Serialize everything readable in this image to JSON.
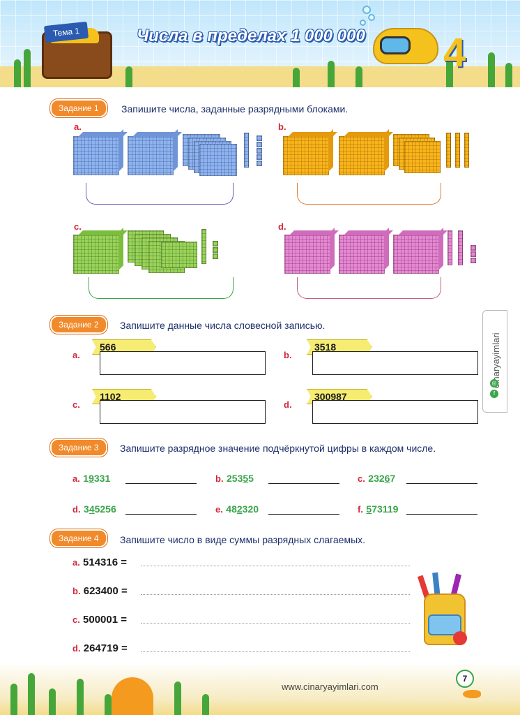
{
  "header": {
    "theme_tag": "Тема 1",
    "title": "Числа в пределах 1 000 000",
    "unit_number": "4"
  },
  "task1": {
    "badge": "Задание 1",
    "instruction": "Запишите числа, заданные разрядными блоками.",
    "parts": [
      {
        "letter": "a.",
        "color": "#8fb3ec",
        "cubes": 2,
        "flats": 4,
        "rods": 1,
        "units": 5
      },
      {
        "letter": "b.",
        "color": "#f7b51b",
        "cubes": 2,
        "flats": 3,
        "rods": 3,
        "units": 0
      },
      {
        "letter": "c.",
        "color": "#9bd25a",
        "cubes": 1,
        "flats": 4,
        "rods": 1,
        "units": 3
      },
      {
        "letter": "d.",
        "color": "#e38ad0",
        "cubes": 3,
        "flats": 0,
        "rods": 2,
        "units": 3
      }
    ]
  },
  "task2": {
    "badge": "Задание 2",
    "instruction": "Запишите данные числа словесной записью.",
    "items": [
      {
        "letter": "a.",
        "number": "566"
      },
      {
        "letter": "b.",
        "number": "3518"
      },
      {
        "letter": "c.",
        "number": "1102"
      },
      {
        "letter": "d.",
        "number": "300987"
      }
    ]
  },
  "task3": {
    "badge": "Задание 3",
    "instruction": "Запишите разрядное значение подчёркнутой цифры в каждом числе.",
    "items": [
      {
        "letter": "a.",
        "pre": "1",
        "digit": "9",
        "post": "331"
      },
      {
        "letter": "b.",
        "pre": "253",
        "digit": "5",
        "post": "5"
      },
      {
        "letter": "c.",
        "pre": "232",
        "digit": "6",
        "post": "7"
      },
      {
        "letter": "d.",
        "pre": "3",
        "digit": "4",
        "post": "5256"
      },
      {
        "letter": "e.",
        "pre": "48",
        "digit": "2",
        "post": "320"
      },
      {
        "letter": "f.",
        "pre": "",
        "digit": "5",
        "post": "73119"
      }
    ]
  },
  "task4": {
    "badge": "Задание 4",
    "instruction": "Запишите число в виде суммы разрядных слагаемых.",
    "items": [
      {
        "letter": "a.",
        "expr": "514316 ="
      },
      {
        "letter": "b.",
        "expr": "623400 ="
      },
      {
        "letter": "c.",
        "expr": "500001 ="
      },
      {
        "letter": "d.",
        "expr": "264719 ="
      }
    ]
  },
  "side_tab": {
    "text": "cinaryayimlari"
  },
  "footer": {
    "url": "www.cinaryayimlari.com",
    "page_number": "7"
  }
}
